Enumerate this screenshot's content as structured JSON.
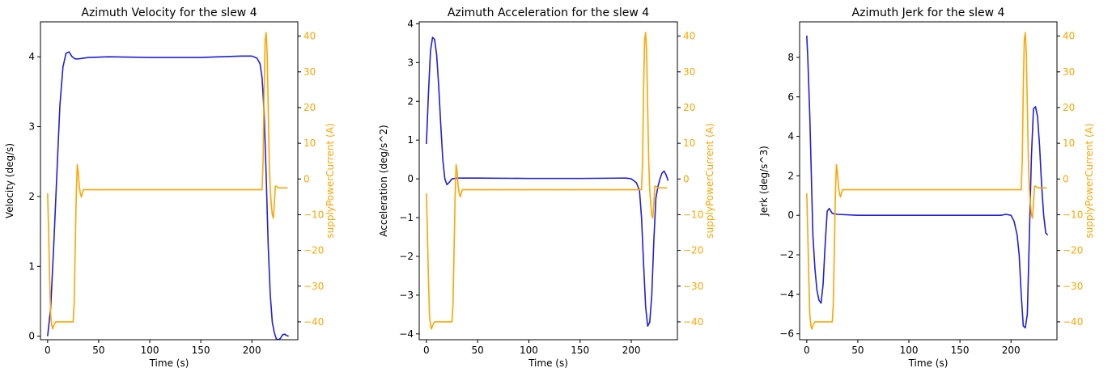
{
  "colors": {
    "primary": "#1f1fdc",
    "secondary": "#ffa500",
    "axis": "#000000",
    "text": "#000000"
  },
  "chart_data": [
    {
      "type": "line",
      "title": "Azimuth Velocity for the slew 4",
      "xlabel": "Time (s)",
      "ylabel": "Velocity (deg/s)",
      "y2label": "supplyPowerCurrent (A)",
      "xlim": [
        -7,
        245
      ],
      "ylim": [
        -0.05,
        4.5
      ],
      "y2lim": [
        -45,
        44
      ],
      "xticks": [
        0,
        50,
        100,
        150,
        200
      ],
      "yticks": [
        0,
        1,
        2,
        3,
        4
      ],
      "y2ticks": [
        -40,
        -30,
        -20,
        -10,
        0,
        10,
        20,
        30,
        40
      ],
      "grid": false,
      "series": [
        {
          "axis": "left",
          "color": "#1f1fdc",
          "x": [
            0,
            3,
            6,
            9,
            12,
            15,
            18,
            21,
            24,
            27,
            30,
            40,
            60,
            100,
            150,
            190,
            200,
            205,
            208,
            210,
            212,
            214,
            216,
            218,
            220,
            222,
            224,
            226,
            228,
            230,
            232,
            234,
            236
          ],
          "y": [
            0,
            0.4,
            1.3,
            2.3,
            3.3,
            3.85,
            4.05,
            4.07,
            4.0,
            3.97,
            3.97,
            3.99,
            4.0,
            3.99,
            3.99,
            4.01,
            4.01,
            3.98,
            3.9,
            3.7,
            3.2,
            2.3,
            1.3,
            0.6,
            0.2,
            0.05,
            -0.04,
            -0.05,
            -0.03,
            0.02,
            0.03,
            0.01,
            0.0
          ]
        },
        {
          "axis": "right",
          "color": "#ffa500",
          "x": [
            0,
            1,
            2,
            3,
            4,
            5,
            6,
            8,
            25,
            26,
            27,
            28,
            29,
            30,
            31,
            32,
            33,
            35,
            40,
            80,
            150,
            200,
            209,
            210,
            211,
            212,
            213,
            214,
            215,
            216,
            217,
            218,
            219,
            220,
            221,
            222,
            223,
            224,
            226,
            228,
            230,
            235
          ],
          "y": [
            -4,
            -15,
            -28,
            -38,
            -41,
            -42,
            -41,
            -40,
            -40,
            -35,
            -20,
            -5,
            4,
            2,
            -2,
            -4,
            -5,
            -3,
            -3,
            -3,
            -3,
            -3,
            -3,
            -3,
            5,
            25,
            39,
            41,
            35,
            20,
            5,
            -3,
            -7,
            -10,
            -11,
            -7,
            -2,
            -2,
            -2.5,
            -2.5,
            -2.5,
            -2.5
          ]
        }
      ]
    },
    {
      "type": "line",
      "title": "Azimuth Acceleration for the slew 4",
      "xlabel": "Time (s)",
      "ylabel": "Acceleration (deg/s^2)",
      "y2label": "supplyPowerCurrent (A)",
      "xlim": [
        -7,
        245
      ],
      "ylim": [
        -4.15,
        4.05
      ],
      "y2lim": [
        -45,
        44
      ],
      "xticks": [
        0,
        50,
        100,
        150,
        200
      ],
      "yticks": [
        -4,
        -3,
        -2,
        -1,
        0,
        1,
        2,
        3,
        4
      ],
      "y2ticks": [
        -40,
        -30,
        -20,
        -10,
        0,
        10,
        20,
        30,
        40
      ],
      "grid": false,
      "series": [
        {
          "axis": "left",
          "color": "#1f1fdc",
          "x": [
            0,
            2,
            4,
            6,
            8,
            10,
            12,
            14,
            16,
            18,
            20,
            22,
            25,
            30,
            50,
            100,
            150,
            195,
            200,
            205,
            208,
            210,
            212,
            214,
            216,
            218,
            220,
            222,
            224,
            226,
            228,
            230,
            232,
            234,
            236
          ],
          "y": [
            0.9,
            2.2,
            3.3,
            3.65,
            3.6,
            3.2,
            2.4,
            1.4,
            0.5,
            0.0,
            -0.15,
            -0.1,
            0.0,
            0.02,
            0.02,
            0.01,
            0.01,
            0.02,
            0.0,
            -0.1,
            -0.3,
            -1.0,
            -2.2,
            -3.3,
            -3.8,
            -3.7,
            -3.0,
            -1.6,
            -0.5,
            -0.2,
            0.0,
            0.15,
            0.2,
            0.1,
            -0.05
          ]
        },
        {
          "axis": "right",
          "color": "#ffa500",
          "x": [
            0,
            1,
            2,
            3,
            4,
            5,
            6,
            8,
            25,
            26,
            27,
            28,
            29,
            30,
            31,
            32,
            33,
            35,
            40,
            80,
            150,
            200,
            209,
            210,
            211,
            212,
            213,
            214,
            215,
            216,
            217,
            218,
            219,
            220,
            221,
            222,
            223,
            224,
            226,
            228,
            230,
            235
          ],
          "y": [
            -4,
            -15,
            -28,
            -38,
            -41,
            -42,
            -41,
            -40,
            -40,
            -35,
            -20,
            -5,
            4,
            2,
            -2,
            -4,
            -5,
            -3,
            -3,
            -3,
            -3,
            -3,
            -3,
            -3,
            5,
            25,
            39,
            41,
            35,
            20,
            5,
            -3,
            -7,
            -10,
            -11,
            -7,
            -2,
            -2,
            -2.5,
            -2.5,
            -2.5,
            -2.5
          ]
        }
      ]
    },
    {
      "type": "line",
      "title": "Azimuth Jerk for the slew 4",
      "xlabel": "Time (s)",
      "ylabel": "Jerk (deg/s^3)",
      "y2label": "supplyPowerCurrent (A)",
      "xlim": [
        -7,
        245
      ],
      "ylim": [
        -6.3,
        9.8
      ],
      "y2lim": [
        -45,
        44
      ],
      "xticks": [
        0,
        50,
        100,
        150,
        200
      ],
      "yticks": [
        -6,
        -4,
        -2,
        0,
        2,
        4,
        6,
        8
      ],
      "y2ticks": [
        -40,
        -30,
        -20,
        -10,
        0,
        10,
        20,
        30,
        40
      ],
      "grid": false,
      "series": [
        {
          "axis": "left",
          "color": "#1f1fdc",
          "x": [
            0,
            1,
            2,
            3,
            4,
            5,
            6,
            8,
            10,
            12,
            14,
            16,
            18,
            20,
            22,
            25,
            30,
            50,
            100,
            150,
            190,
            195,
            200,
            203,
            206,
            208,
            210,
            212,
            214,
            216,
            218,
            220,
            222,
            224,
            226,
            228,
            230,
            232,
            234,
            236
          ],
          "y": [
            9.1,
            8.0,
            6.5,
            5.0,
            3.0,
            1.0,
            -1.0,
            -2.7,
            -3.8,
            -4.3,
            -4.45,
            -3.5,
            -1.5,
            0.2,
            0.35,
            0.1,
            0.05,
            0.0,
            0.0,
            0.0,
            0.0,
            0.05,
            0.0,
            -0.3,
            -1.0,
            -2.0,
            -4.0,
            -5.6,
            -5.7,
            -5.0,
            -1.0,
            3.0,
            5.4,
            5.5,
            5.0,
            3.5,
            1.5,
            0.0,
            -0.9,
            -1.0
          ]
        },
        {
          "axis": "right",
          "color": "#ffa500",
          "x": [
            0,
            1,
            2,
            3,
            4,
            5,
            6,
            8,
            25,
            26,
            27,
            28,
            29,
            30,
            31,
            32,
            33,
            35,
            40,
            80,
            150,
            200,
            209,
            210,
            211,
            212,
            213,
            214,
            215,
            216,
            217,
            218,
            219,
            220,
            221,
            222,
            223,
            224,
            226,
            228,
            230,
            235
          ],
          "y": [
            -4,
            -15,
            -28,
            -38,
            -41,
            -42,
            -41,
            -40,
            -40,
            -35,
            -20,
            -5,
            4,
            2,
            -2,
            -4,
            -5,
            -3,
            -3,
            -3,
            -3,
            -3,
            -3,
            -3,
            5,
            25,
            39,
            41,
            35,
            20,
            5,
            -3,
            -7,
            -10,
            -11,
            -7,
            -2,
            -2,
            -2.5,
            -2.5,
            -2.5,
            -2.5
          ]
        }
      ]
    }
  ]
}
